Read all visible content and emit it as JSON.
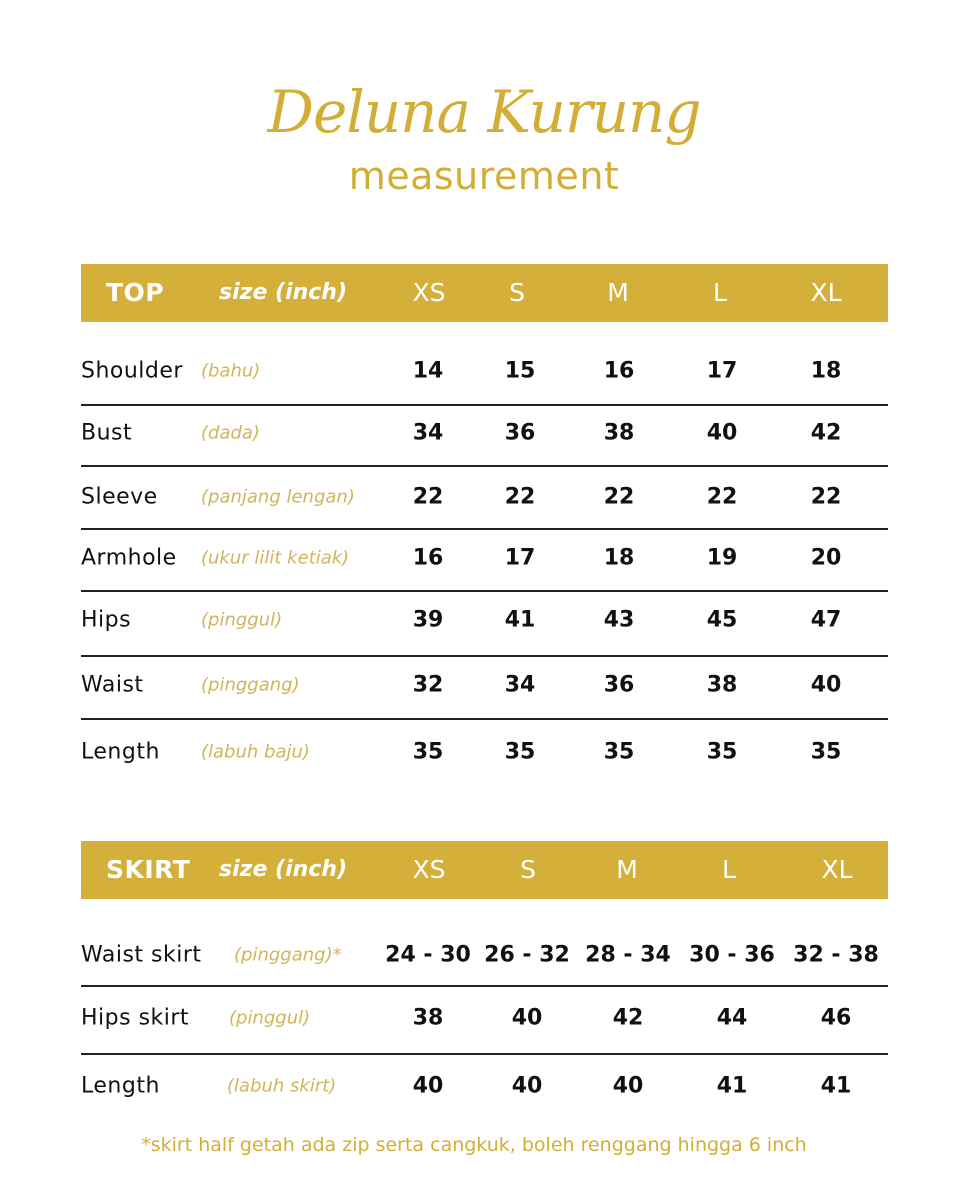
{
  "title": "Deluna Kurung",
  "subtitle": "measurement",
  "colors": {
    "accent": "#d4b03a",
    "text": "#111111"
  },
  "top": {
    "section": "TOP",
    "unit": "size (inch)",
    "sizes": [
      "XS",
      "S",
      "M",
      "L",
      "XL"
    ],
    "rows": [
      {
        "label": "Shoulder",
        "note": "(bahu)",
        "values": [
          "14",
          "15",
          "16",
          "17",
          "18"
        ]
      },
      {
        "label": "Bust",
        "note": "(dada)",
        "values": [
          "34",
          "36",
          "38",
          "40",
          "42"
        ]
      },
      {
        "label": "Sleeve",
        "note": "(panjang lengan)",
        "values": [
          "22",
          "22",
          "22",
          "22",
          "22"
        ]
      },
      {
        "label": "Armhole",
        "note": "(ukur lilit ketiak)",
        "values": [
          "16",
          "17",
          "18",
          "19",
          "20"
        ]
      },
      {
        "label": "Hips",
        "note": "(pinggul)",
        "values": [
          "39",
          "41",
          "43",
          "45",
          "47"
        ]
      },
      {
        "label": "Waist",
        "note": "(pinggang)",
        "values": [
          "32",
          "34",
          "36",
          "38",
          "40"
        ]
      },
      {
        "label": "Length",
        "note": "(labuh baju)",
        "values": [
          "35",
          "35",
          "35",
          "35",
          "35"
        ]
      }
    ]
  },
  "skirt": {
    "section": "SKIRT",
    "unit": "size (inch)",
    "sizes": [
      "XS",
      "S",
      "M",
      "L",
      "XL"
    ],
    "rows": [
      {
        "label": "Waist skirt",
        "note": "(pinggang)*",
        "values": [
          "24 - 30",
          "26 - 32",
          "28 - 34",
          "30 - 36",
          "32 - 38"
        ]
      },
      {
        "label": "Hips skirt",
        "note": "(pinggul)",
        "values": [
          "38",
          "40",
          "42",
          "44",
          "46"
        ]
      },
      {
        "label": "Length",
        "note": "(labuh skirt)",
        "values": [
          "40",
          "40",
          "40",
          "41",
          "41"
        ]
      }
    ]
  },
  "footnote": "*skirt half getah ada zip serta cangkuk, boleh renggang hingga 6 inch"
}
